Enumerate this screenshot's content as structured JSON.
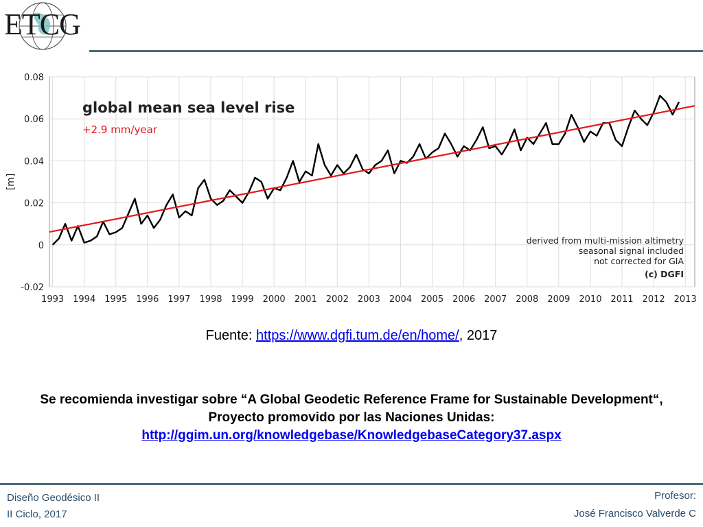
{
  "logo": {
    "text": "ETCG"
  },
  "chart_data": {
    "type": "line",
    "title": "global mean sea level rise",
    "trend_label": "+2.9 mm/year",
    "ylabel": "[m]",
    "xlabel": "",
    "xlim": [
      1992.9,
      2013.3
    ],
    "ylim": [
      -0.02,
      0.08
    ],
    "yticks": [
      "0.08",
      "0.06",
      "0.04",
      "0.02",
      "0",
      "-0.02"
    ],
    "ytick_values": [
      0.08,
      0.06,
      0.04,
      0.02,
      0,
      -0.02
    ],
    "xticks": [
      "1993",
      "1994",
      "1995",
      "1996",
      "1997",
      "1998",
      "1999",
      "2000",
      "2001",
      "2002",
      "2003",
      "2004",
      "2005",
      "2006",
      "2007",
      "2008",
      "2009",
      "2010",
      "2011",
      "2012",
      "2013"
    ],
    "xtick_values": [
      1993,
      1994,
      1995,
      1996,
      1997,
      1998,
      1999,
      2000,
      2001,
      2002,
      2003,
      2004,
      2005,
      2006,
      2007,
      2008,
      2009,
      2010,
      2011,
      2012,
      2013
    ],
    "grid": true,
    "notes": [
      "derived from multi-mission altimetry",
      "seasonal signal included",
      "not corrected for GIA"
    ],
    "credit": "(c) DGFI",
    "series": [
      {
        "color": "#000000",
        "x": [
          1993.0,
          1993.2,
          1993.4,
          1993.6,
          1993.8,
          1994.0,
          1994.2,
          1994.4,
          1994.6,
          1994.8,
          1995.0,
          1995.2,
          1995.4,
          1995.6,
          1995.8,
          1996.0,
          1996.2,
          1996.4,
          1996.6,
          1996.8,
          1997.0,
          1997.2,
          1997.4,
          1997.6,
          1997.8,
          1998.0,
          1998.2,
          1998.4,
          1998.6,
          1998.8,
          1999.0,
          1999.2,
          1999.4,
          1999.6,
          1999.8,
          2000.0,
          2000.2,
          2000.4,
          2000.6,
          2000.8,
          2001.0,
          2001.2,
          2001.4,
          2001.6,
          2001.8,
          2002.0,
          2002.2,
          2002.4,
          2002.6,
          2002.8,
          2003.0,
          2003.2,
          2003.4,
          2003.6,
          2003.8,
          2004.0,
          2004.2,
          2004.4,
          2004.6,
          2004.8,
          2005.0,
          2005.2,
          2005.4,
          2005.6,
          2005.8,
          2006.0,
          2006.2,
          2006.4,
          2006.6,
          2006.8,
          2007.0,
          2007.2,
          2007.4,
          2007.6,
          2007.8,
          2008.0,
          2008.2,
          2008.4,
          2008.6,
          2008.8,
          2009.0,
          2009.2,
          2009.4,
          2009.6,
          2009.8,
          2010.0,
          2010.2,
          2010.4,
          2010.6,
          2010.8,
          2011.0,
          2011.2,
          2011.4,
          2011.6,
          2011.8,
          2012.0,
          2012.2,
          2012.4,
          2012.6,
          2012.8
        ],
        "values": [
          0.0,
          0.003,
          0.01,
          0.002,
          0.009,
          0.001,
          0.002,
          0.004,
          0.011,
          0.005,
          0.006,
          0.008,
          0.015,
          0.022,
          0.01,
          0.014,
          0.008,
          0.012,
          0.019,
          0.024,
          0.013,
          0.016,
          0.014,
          0.027,
          0.031,
          0.022,
          0.019,
          0.021,
          0.026,
          0.023,
          0.02,
          0.025,
          0.032,
          0.03,
          0.022,
          0.027,
          0.026,
          0.032,
          0.04,
          0.03,
          0.035,
          0.033,
          0.048,
          0.038,
          0.033,
          0.038,
          0.034,
          0.037,
          0.043,
          0.036,
          0.034,
          0.038,
          0.04,
          0.045,
          0.034,
          0.04,
          0.039,
          0.042,
          0.048,
          0.041,
          0.044,
          0.046,
          0.053,
          0.048,
          0.042,
          0.047,
          0.045,
          0.05,
          0.056,
          0.046,
          0.047,
          0.043,
          0.048,
          0.055,
          0.045,
          0.051,
          0.048,
          0.053,
          0.058,
          0.048,
          0.048,
          0.053,
          0.062,
          0.056,
          0.049,
          0.054,
          0.052,
          0.058,
          0.058,
          0.05,
          0.047,
          0.056,
          0.064,
          0.06,
          0.057,
          0.063,
          0.071,
          0.068,
          0.062,
          0.068
        ]
      },
      {
        "color": "#e31a1c",
        "x": [
          1992.9,
          2013.3
        ],
        "values": [
          0.0061,
          0.0662
        ]
      }
    ]
  },
  "source": {
    "prefix": "Fuente: ",
    "link": "https://www.dgfi.tum.de/en/home/",
    "suffix": ", 2017"
  },
  "recommendation": {
    "text": "Se recomienda investigar sobre “A Global Geodetic Reference Frame for Sustainable Development“, Proyecto promovido por las Naciones Unidas:",
    "link": "http://ggim.un.org/knowledgebase/KnowledgebaseCategory37.aspx"
  },
  "footer": {
    "course": "Diseño Geodésico II",
    "term": "II Ciclo, 2017",
    "role": "Profesor:",
    "name": "José Francisco Valverde C"
  }
}
